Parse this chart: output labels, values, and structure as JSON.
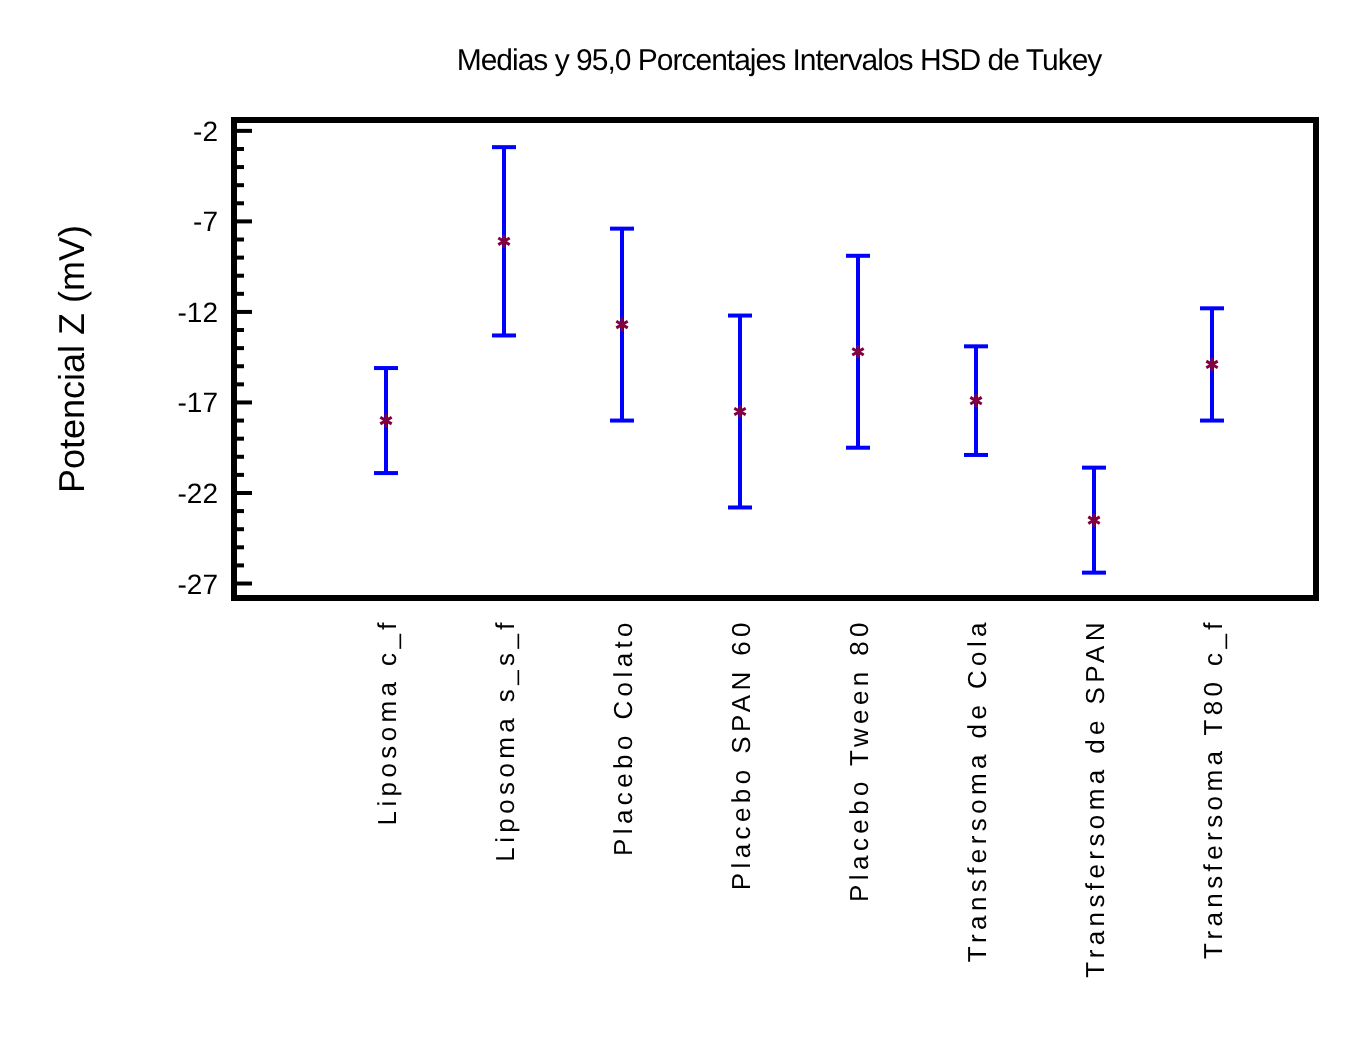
{
  "chart_data": {
    "type": "scatter",
    "title": "Medias y 95,0 Porcentajes Intervalos HSD de Tukey",
    "ylabel": "Potencial Z (mV)",
    "categories": [
      "Liposoma c_f",
      "Liposoma s_s_f",
      "Placebo Colato",
      "Placebo SPAN 60",
      "Placebo Tween 80",
      "Transfersoma de Cola",
      "Transfersoma de SPAN",
      "Transfersoma T80 c_f"
    ],
    "series": [
      {
        "color": "#800040",
        "values": [
          -18.0,
          -8.1,
          -12.7,
          -17.5,
          -14.2,
          -16.9,
          -23.5,
          -14.9
        ],
        "errors": [
          2.9,
          5.2,
          5.3,
          5.3,
          5.3,
          3.0,
          2.9,
          3.1
        ]
      }
    ],
    "marker": "cross",
    "grid": false,
    "ylim": [
      -27.8,
      -1.4
    ],
    "yticks": [
      {
        "value": -27,
        "label": "-27"
      },
      {
        "value": -26,
        "label": null
      },
      {
        "value": -25,
        "label": null
      },
      {
        "value": -24,
        "label": null
      },
      {
        "value": -23,
        "label": null
      },
      {
        "value": -22,
        "label": "-22"
      },
      {
        "value": -21,
        "label": null
      },
      {
        "value": -20,
        "label": null
      },
      {
        "value": -19,
        "label": null
      },
      {
        "value": -18,
        "label": null
      },
      {
        "value": -17,
        "label": "-17"
      },
      {
        "value": -16,
        "label": null
      },
      {
        "value": -15,
        "label": null
      },
      {
        "value": -14,
        "label": null
      },
      {
        "value": -13,
        "label": null
      },
      {
        "value": -12,
        "label": "-12"
      },
      {
        "value": -11,
        "label": null
      },
      {
        "value": -10,
        "label": null
      },
      {
        "value": -9,
        "label": null
      },
      {
        "value": -8,
        "label": null
      },
      {
        "value": -7,
        "label": "-7"
      },
      {
        "value": -6,
        "label": null
      },
      {
        "value": -5,
        "label": null
      },
      {
        "value": -4,
        "label": null
      },
      {
        "value": -3,
        "label": null
      },
      {
        "value": -2,
        "label": "-2"
      }
    ]
  }
}
